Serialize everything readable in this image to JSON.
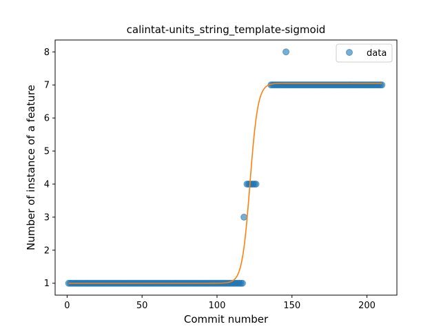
{
  "chart_data": {
    "type": "scatter",
    "title": "calintat-units_string_template-sigmoid",
    "xlabel": "Commit number",
    "ylabel": "Number of instance of a feature",
    "xlim": [
      -8,
      220
    ],
    "ylim": [
      0.64,
      8.36
    ],
    "xticks": [
      0,
      50,
      100,
      150,
      200
    ],
    "yticks": [
      1,
      2,
      3,
      4,
      5,
      6,
      7,
      8
    ],
    "grid": false,
    "legend": {
      "position": "top-right",
      "entries": [
        "data"
      ]
    },
    "series": [
      {
        "name": "data",
        "kind": "scatter",
        "color": "#1f77b4",
        "segments": [
          {
            "x_from": 1,
            "x_to": 117,
            "y": 1
          },
          {
            "x_from": 120,
            "x_to": 126,
            "y": 4
          },
          {
            "x_from": 136,
            "x_to": 210,
            "y": 7
          }
        ],
        "points": [
          {
            "x": 118,
            "y": 3
          },
          {
            "x": 146,
            "y": 8
          }
        ]
      },
      {
        "kind": "line",
        "color": "#ff7f0e",
        "sigmoid": {
          "lower": 1.0,
          "upper": 7.05,
          "midpoint": 122,
          "rate": 0.38
        },
        "x_range": [
          1,
          210
        ]
      }
    ]
  }
}
